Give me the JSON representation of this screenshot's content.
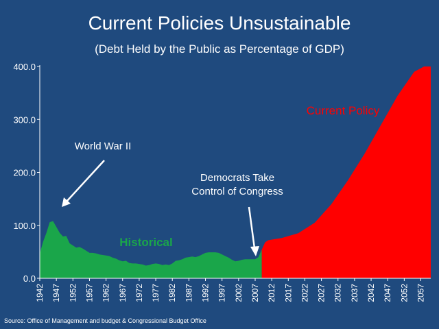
{
  "slide": {
    "title": "Current Policies Unsustainable",
    "subtitle": "(Debt Held by the Public as Percentage of GDP)",
    "source": "Source: Office of Management and budget & Congressional Budget Office"
  },
  "chart_data": {
    "type": "area",
    "title": "Current Policies Unsustainable",
    "subtitle": "(Debt Held by the Public as Percentage of GDP)",
    "xlabel": "",
    "ylabel": "",
    "ylim": [
      0,
      400
    ],
    "y_ticks": [
      "0.0",
      "100.0",
      "200.0",
      "300.0",
      "400.0"
    ],
    "x_ticks": [
      "1942",
      "1947",
      "1952",
      "1957",
      "1962",
      "1967",
      "1972",
      "1977",
      "1982",
      "1987",
      "1992",
      "1997",
      "2002",
      "2007",
      "2012",
      "2017",
      "2022",
      "2027",
      "2032",
      "2037",
      "2042",
      "2047",
      "2052",
      "2057"
    ],
    "xlim": [
      1942,
      2060
    ],
    "grid": false,
    "legend": "none",
    "series": [
      {
        "name": "Historical",
        "color": "#1aa64a",
        "x": [
          1942,
          1943,
          1944,
          1945,
          1946,
          1947,
          1948,
          1949,
          1950,
          1951,
          1952,
          1953,
          1954,
          1955,
          1956,
          1957,
          1958,
          1959,
          1960,
          1961,
          1962,
          1963,
          1964,
          1965,
          1966,
          1967,
          1968,
          1969,
          1970,
          1971,
          1972,
          1973,
          1974,
          1975,
          1976,
          1977,
          1978,
          1979,
          1980,
          1981,
          1982,
          1983,
          1984,
          1985,
          1986,
          1987,
          1988,
          1989,
          1990,
          1991,
          1992,
          1993,
          1994,
          1995,
          1996,
          1997,
          1998,
          1999,
          2000,
          2001,
          2002,
          2003,
          2004,
          2005,
          2006,
          2007,
          2008,
          2009
        ],
        "values": [
          47,
          69,
          86,
          106,
          108,
          97,
          86,
          79,
          80,
          66,
          62,
          58,
          59,
          56,
          52,
          48,
          48,
          47,
          45,
          44,
          43,
          42,
          39,
          37,
          34,
          32,
          33,
          29,
          28,
          28,
          27,
          26,
          24,
          25,
          27,
          28,
          27,
          25,
          26,
          25,
          28,
          33,
          34,
          36,
          39,
          40,
          41,
          40,
          42,
          45,
          48,
          49,
          49,
          49,
          48,
          45,
          42,
          39,
          35,
          32,
          33,
          35,
          36,
          36,
          36,
          36,
          40,
          54
        ]
      },
      {
        "name": "Current Policy",
        "color": "#ff0000",
        "x": [
          2009,
          2010,
          2011,
          2012,
          2015,
          2020,
          2025,
          2030,
          2035,
          2040,
          2045,
          2050,
          2055,
          2058,
          2060
        ],
        "values": [
          54,
          68,
          72,
          73,
          76,
          85,
          105,
          140,
          185,
          235,
          290,
          345,
          390,
          400,
          400
        ]
      }
    ],
    "annotations": [
      {
        "name": "world-war-ii",
        "text": "World War II",
        "x": 1945,
        "y": 108
      },
      {
        "name": "democrats-take-control",
        "text": "Democrats Take Control of Congress",
        "lines": [
          "Democrats Take",
          "Control of Congress"
        ],
        "x": 2007,
        "y": 45
      },
      {
        "name": "historical-label",
        "text": "Historical",
        "color": "#1aa64a"
      },
      {
        "name": "current-policy-label",
        "text": "Current Policy",
        "color": "#ff0000"
      }
    ]
  }
}
